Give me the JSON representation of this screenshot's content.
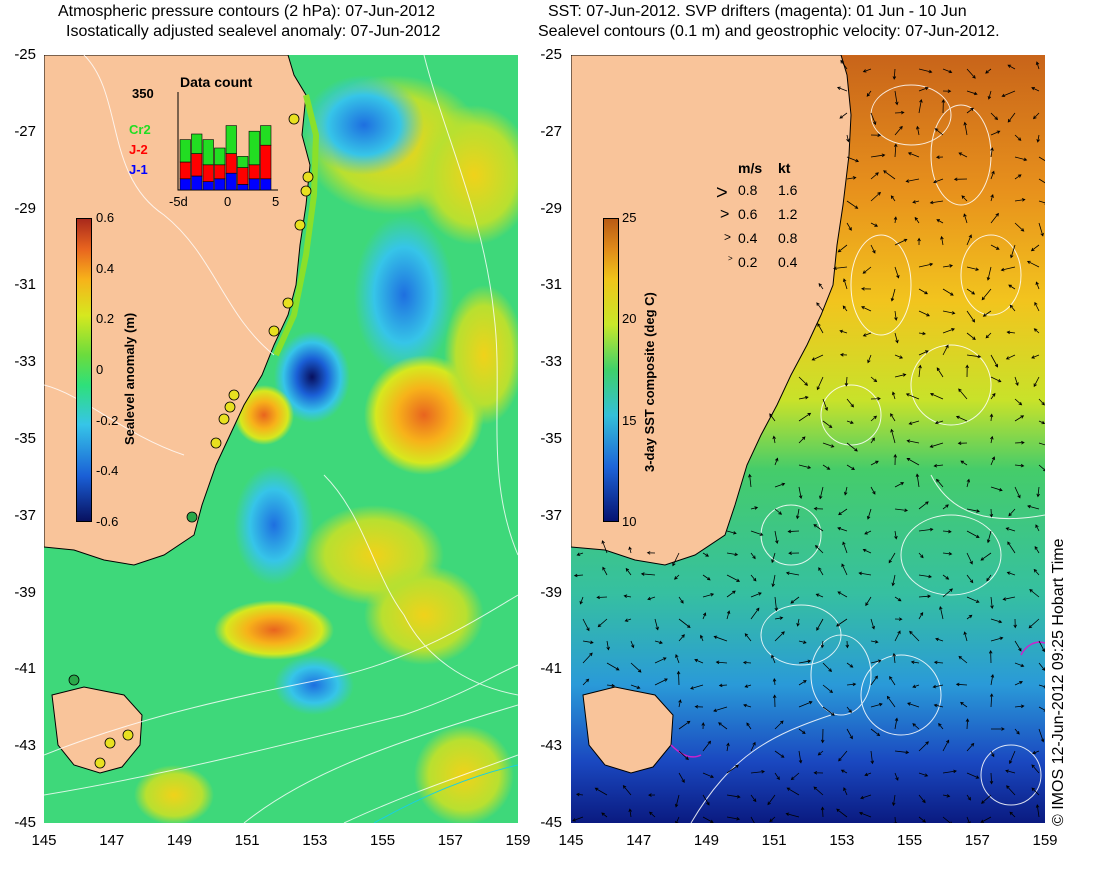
{
  "left_panel": {
    "title_line1": "Atmospheric pressure contours (2 hPa): 07-Jun-2012",
    "title_line2": "Isostatically adjusted sealevel anomaly: 07-Jun-2012",
    "colorbar": {
      "label": "Sealevel anomaly (m)",
      "ticks": [
        "0.6",
        "0.4",
        "0.2",
        "0",
        "-0.2",
        "-0.4",
        "-0.6"
      ]
    },
    "inset": {
      "title": "Data count",
      "ymax_label": "350",
      "xticks": [
        "-5d",
        "0",
        "5"
      ],
      "series_labels": [
        "Cr2",
        "J-2",
        "J-1"
      ],
      "series_colors": [
        "#22dd22",
        "#ff0000",
        "#0000ff"
      ],
      "bars": [
        {
          "cr2": 80,
          "j2": 60,
          "j1": 40
        },
        {
          "cr2": 70,
          "j2": 80,
          "j1": 50
        },
        {
          "cr2": 90,
          "j2": 60,
          "j1": 30
        },
        {
          "cr2": 60,
          "j2": 50,
          "j1": 40
        },
        {
          "cr2": 100,
          "j2": 70,
          "j1": 60
        },
        {
          "cr2": 40,
          "j2": 60,
          "j1": 20
        },
        {
          "cr2": 120,
          "j2": 50,
          "j1": 40
        },
        {
          "cr2": 70,
          "j2": 120,
          "j1": 40
        }
      ]
    }
  },
  "right_panel": {
    "title_line1": "SST: 07-Jun-2012. SVP drifters (magenta): 01 Jun - 10 Jun",
    "title_line2": "Sealevel contours (0.1 m) and geostrophic velocity: 07-Jun-2012.",
    "colorbar": {
      "label": "3-day SST composite (deg C)",
      "ticks": [
        "25",
        "20",
        "15",
        "10"
      ]
    },
    "velocity_legend": {
      "header_ms": "m/s",
      "header_kt": "kt",
      "rows": [
        {
          "ms": "0.8",
          "kt": "1.6"
        },
        {
          "ms": "0.6",
          "kt": "1.2"
        },
        {
          "ms": "0.4",
          "kt": "0.8"
        },
        {
          "ms": "0.2",
          "kt": "0.4"
        }
      ]
    }
  },
  "axes": {
    "y_ticks": [
      "-25",
      "-27",
      "-29",
      "-31",
      "-33",
      "-35",
      "-37",
      "-39",
      "-41",
      "-43",
      "-45"
    ],
    "x_ticks": [
      "145",
      "147",
      "149",
      "151",
      "153",
      "155",
      "157",
      "159"
    ]
  },
  "credit": "© IMOS 12-Jun-2012 09:25 Hobart Time",
  "colors": {
    "land": "#f9c49a",
    "map_gradient_sla": [
      "#08105e",
      "#1a5fd6",
      "#36c5e8",
      "#2ee07a",
      "#6bdc3d",
      "#d6e81f",
      "#f7b21a",
      "#e8641f",
      "#a8281c"
    ],
    "map_gradient_sst": [
      "#061270",
      "#1e64d8",
      "#35c0d8",
      "#3fd06a",
      "#c9e82a",
      "#f0c41a",
      "#e08a1a",
      "#b85a14"
    ]
  }
}
